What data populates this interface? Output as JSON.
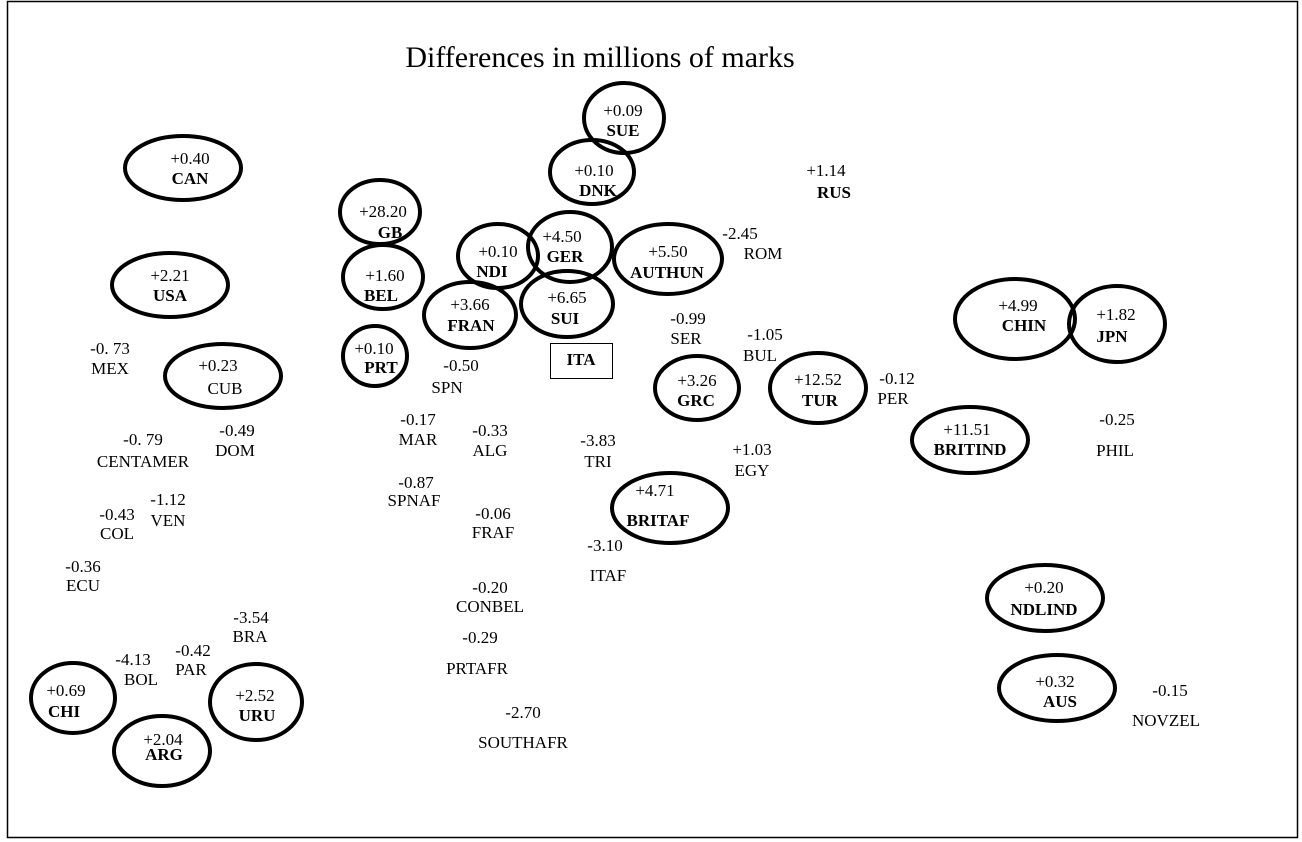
{
  "title": "Differences in millions of marks",
  "nodes": [
    {
      "label": "SUE",
      "value": "+0.09"
    },
    {
      "label": "DNK",
      "value": "+0.10"
    },
    {
      "label": "CAN",
      "value": "+0.40"
    },
    {
      "label": "RUS",
      "value": "+1.14"
    },
    {
      "label": "GB",
      "value": "+28.20"
    },
    {
      "label": "GER",
      "value": "+4.50"
    },
    {
      "label": "NDI",
      "value": "+0.10"
    },
    {
      "label": "AUTHUN",
      "value": "+5.50"
    },
    {
      "label": "ROM",
      "value": "-2.45"
    },
    {
      "label": "USA",
      "value": "+2.21"
    },
    {
      "label": "BEL",
      "value": "+1.60"
    },
    {
      "label": "SUI",
      "value": "+6.65"
    },
    {
      "label": "FRAN",
      "value": "+3.66"
    },
    {
      "label": "SER",
      "value": "-0.99"
    },
    {
      "label": "CHIN",
      "value": "+4.99"
    },
    {
      "label": "JPN",
      "value": "+1.82"
    },
    {
      "label": "MEX",
      "value": "-0. 73"
    },
    {
      "label": "CUB",
      "value": "+0.23"
    },
    {
      "label": "PRT",
      "value": "+0.10"
    },
    {
      "label": "ITA"
    },
    {
      "label": "SPN",
      "value": "-0.50"
    },
    {
      "label": "BUL",
      "value": "-1.05"
    },
    {
      "label": "GRC",
      "value": "+3.26"
    },
    {
      "label": "TUR",
      "value": "+12.52"
    },
    {
      "label": "PER",
      "value": "-0.12"
    },
    {
      "label": "BRITIND",
      "value": "+11.51"
    },
    {
      "label": "PHIL",
      "value": "-0.25"
    },
    {
      "label": "MAR",
      "value": "-0.17"
    },
    {
      "label": "ALG",
      "value": "-0.33"
    },
    {
      "label": "TRI",
      "value": "-3.83"
    },
    {
      "label": "EGY",
      "value": "+1.03"
    },
    {
      "label": "CENTAMER",
      "value": "-0. 79"
    },
    {
      "label": "DOM",
      "value": "-0.49"
    },
    {
      "label": "SPNAF",
      "value": "-0.87"
    },
    {
      "label": "BRITAF",
      "value": "+4.71"
    },
    {
      "label": "COL",
      "value": "-0.43"
    },
    {
      "label": "VEN",
      "value": "-1.12"
    },
    {
      "label": "FRAF",
      "value": "-0.06"
    },
    {
      "label": "ITAF",
      "value": "-3.10"
    },
    {
      "label": "ECU",
      "value": "-0.36"
    },
    {
      "label": "CONBEL",
      "value": "-0.20"
    },
    {
      "label": "NDLIND",
      "value": "+0.20"
    },
    {
      "label": "BRA",
      "value": "-3.54"
    },
    {
      "label": "PRTAFR",
      "value": "-0.29"
    },
    {
      "label": "BOL",
      "value": "-4.13"
    },
    {
      "label": "PAR",
      "value": "-0.42"
    },
    {
      "label": "CHI",
      "value": "+0.69"
    },
    {
      "label": "URU",
      "value": "+2.52"
    },
    {
      "label": "AUS",
      "value": "+0.32"
    },
    {
      "label": "NOVZEL",
      "value": "-0.15"
    },
    {
      "label": "ARG",
      "value": "+2.04"
    },
    {
      "label": "SOUTHAFR",
      "value": "-2.70"
    }
  ]
}
